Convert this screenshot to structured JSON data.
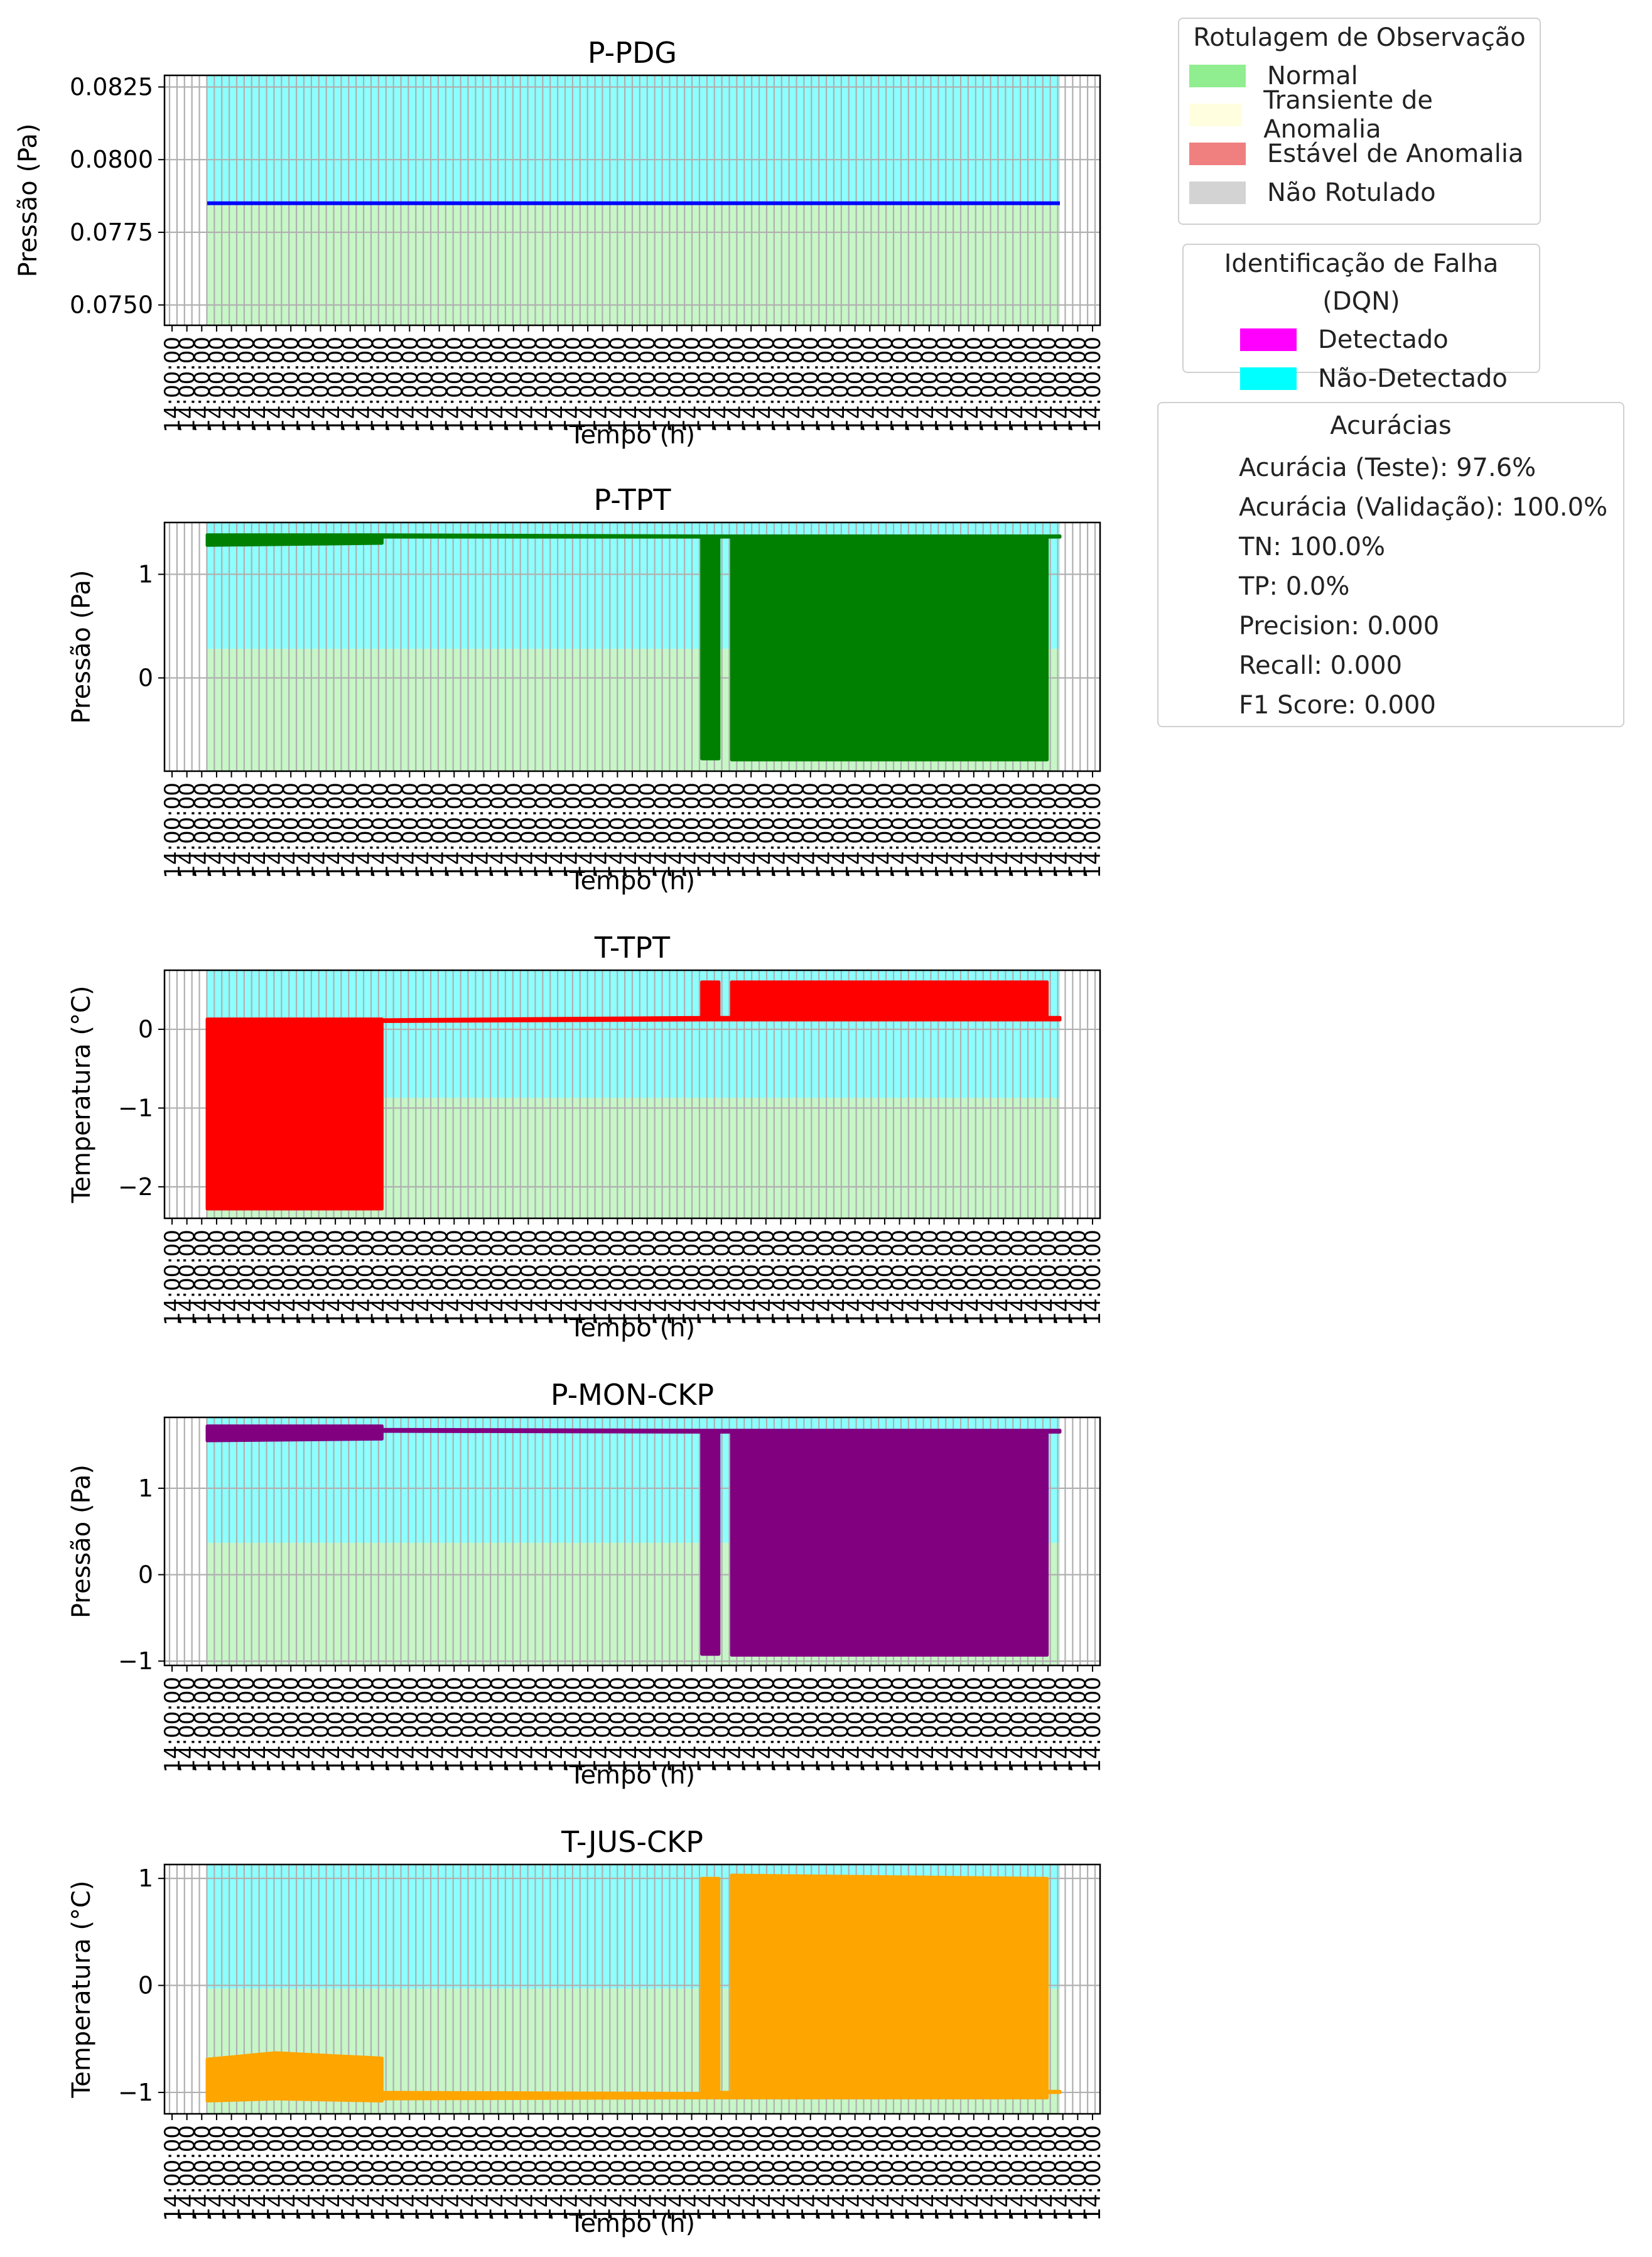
{
  "legend_observation": {
    "title": "Rotulagem de Observação",
    "items": [
      {
        "label": "Normal",
        "color": "#90ee90"
      },
      {
        "label": "Transiente de Anomalia",
        "color": "#ffffe0"
      },
      {
        "label": "Estável de Anomalia",
        "color": "#f08080"
      },
      {
        "label": "Não Rotulado",
        "color": "#d3d3d3"
      }
    ]
  },
  "legend_dqn": {
    "title": "Identificação de Falha (DQN)",
    "items": [
      {
        "label": "Detectado",
        "color": "#ff00ff"
      },
      {
        "label": "Não-Detectado",
        "color": "#00ffff"
      }
    ]
  },
  "accuracies": {
    "title": "Acurácias",
    "lines": [
      "Acurácia (Teste): 97.6%",
      "Acurácia (Validação): 100.0%",
      "TN: 100.0%",
      "TP: 0.0%",
      "Precision: 0.000",
      "Recall: 0.000",
      "F1 Score: 0.000"
    ]
  },
  "chart_data": [
    {
      "type": "line",
      "title": "P-PDG",
      "xlabel": "Tempo (h)",
      "ylabel": "Pressão (Pa)",
      "color": "#0000ff",
      "ylim": [
        0.0743,
        0.0829
      ],
      "yticks": [
        0.075,
        0.0775,
        0.08,
        0.0825
      ],
      "ytick_labels": [
        "0.0750",
        "0.0775",
        "0.0800",
        "0.0825"
      ],
      "series": [
        {
          "x": [
            0,
            1
          ],
          "y": [
            0.0785,
            0.0785
          ]
        }
      ],
      "bands": [
        {
          "x": [
            0,
            1
          ],
          "y": [
            0.0743,
            0.0785
          ],
          "color": "#90ee90"
        },
        {
          "x": [
            0,
            1
          ],
          "y": [
            0.0785,
            0.0829
          ],
          "color": "#00ffff"
        }
      ],
      "grid": true,
      "xtick_labels_overlapping": true
    },
    {
      "type": "area",
      "title": "P-TPT",
      "xlabel": "Tempo (h)",
      "ylabel": "Pressão (Pa)",
      "color": "#008000",
      "ylim": [
        -0.9,
        1.5
      ],
      "yticks": [
        0,
        1
      ],
      "ytick_labels": [
        "0",
        "1"
      ],
      "series": [
        {
          "x": [
            0,
            0.205,
            0.205,
            0.58,
            0.58,
            0.6,
            0.6,
            0.615,
            0.615,
            0.985,
            0.985,
            1
          ],
          "high": [
            1.38,
            1.38,
            1.38,
            1.37,
            1.37,
            1.37,
            1.37,
            1.37,
            1.37,
            1.37,
            1.37,
            1.37
          ],
          "low": [
            1.28,
            1.3,
            1.36,
            1.36,
            -0.78,
            -0.78,
            1.36,
            1.36,
            -0.79,
            -0.79,
            1.36,
            1.36
          ]
        }
      ],
      "bands": [
        {
          "x": [
            0,
            1
          ],
          "y": [
            -0.9,
            0.28
          ],
          "color": "#90ee90"
        },
        {
          "x": [
            0,
            1
          ],
          "y": [
            0.28,
            1.5
          ],
          "color": "#00ffff"
        }
      ],
      "grid": true,
      "xtick_labels_overlapping": true
    },
    {
      "type": "area",
      "title": "T-TPT",
      "xlabel": "Tempo (h)",
      "ylabel": "Temperatura (°C)",
      "color": "#ff0000",
      "ylim": [
        -2.4,
        0.75
      ],
      "yticks": [
        -2,
        -1,
        0
      ],
      "ytick_labels": [
        "−2",
        "−1",
        "0"
      ],
      "series": [
        {
          "x": [
            0,
            0.205,
            0.205,
            0.58,
            0.58,
            0.6,
            0.6,
            0.615,
            0.615,
            0.985,
            0.985,
            1
          ],
          "high": [
            0.13,
            0.13,
            0.12,
            0.15,
            0.6,
            0.6,
            0.15,
            0.15,
            0.6,
            0.6,
            0.15,
            0.15
          ],
          "low": [
            -2.28,
            -2.28,
            0.1,
            0.12,
            0.12,
            0.12,
            0.12,
            0.12,
            0.12,
            0.12,
            0.12,
            0.12
          ]
        }
      ],
      "bands": [
        {
          "x": [
            0,
            1
          ],
          "y": [
            -2.4,
            -0.87
          ],
          "color": "#90ee90"
        },
        {
          "x": [
            0,
            1
          ],
          "y": [
            -0.87,
            0.75
          ],
          "color": "#00ffff"
        }
      ],
      "grid": true,
      "xtick_labels_overlapping": true
    },
    {
      "type": "area",
      "title": "P-MON-CKP",
      "xlabel": "Tempo (h)",
      "ylabel": "Pressão (Pa)",
      "color": "#800080",
      "ylim": [
        -1.05,
        1.82
      ],
      "yticks": [
        -1,
        0,
        1
      ],
      "ytick_labels": [
        "−1",
        "0",
        "1"
      ],
      "series": [
        {
          "x": [
            0,
            0.205,
            0.205,
            0.58,
            0.58,
            0.6,
            0.6,
            0.615,
            0.615,
            0.985,
            0.985,
            1
          ],
          "high": [
            1.72,
            1.72,
            1.68,
            1.67,
            1.67,
            1.67,
            1.67,
            1.67,
            1.67,
            1.67,
            1.67,
            1.67
          ],
          "low": [
            1.55,
            1.57,
            1.66,
            1.65,
            -0.92,
            -0.92,
            1.65,
            1.65,
            -0.93,
            -0.93,
            1.65,
            1.65
          ]
        }
      ],
      "bands": [
        {
          "x": [
            0,
            1
          ],
          "y": [
            -1.05,
            0.37
          ],
          "color": "#90ee90"
        },
        {
          "x": [
            0,
            1
          ],
          "y": [
            0.37,
            1.82
          ],
          "color": "#00ffff"
        }
      ],
      "grid": true,
      "xtick_labels_overlapping": true
    },
    {
      "type": "area",
      "title": "T-JUS-CKP",
      "xlabel": "Tempo (h)",
      "ylabel": "Temperatura (°C)",
      "color": "#ffa500",
      "ylim": [
        -1.2,
        1.13
      ],
      "yticks": [
        -1,
        0,
        1
      ],
      "ytick_labels": [
        "−1",
        "0",
        "1"
      ],
      "series": [
        {
          "x": [
            0,
            0.08,
            0.205,
            0.205,
            0.58,
            0.58,
            0.6,
            0.6,
            0.615,
            0.615,
            0.985,
            0.985,
            1
          ],
          "high": [
            -0.69,
            -0.63,
            -0.68,
            -1.0,
            -1.01,
            1.0,
            1.0,
            -1.0,
            -1.0,
            1.03,
            1.0,
            -0.99,
            -0.99
          ],
          "low": [
            -1.08,
            -1.06,
            -1.08,
            -1.06,
            -1.05,
            -1.05,
            -1.05,
            -1.05,
            -1.05,
            -1.05,
            -1.05,
            -1.0,
            -1.0
          ]
        }
      ],
      "bands": [
        {
          "x": [
            0,
            1
          ],
          "y": [
            -1.2,
            -0.03
          ],
          "color": "#90ee90"
        },
        {
          "x": [
            0,
            1
          ],
          "y": [
            -0.03,
            1.13
          ],
          "color": "#00ffff"
        }
      ],
      "grid": true,
      "xtick_labels_overlapping": true
    }
  ]
}
